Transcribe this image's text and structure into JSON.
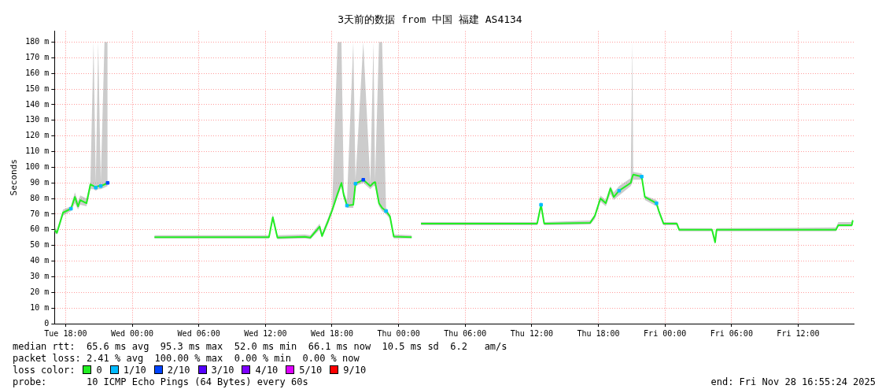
{
  "chart_data": {
    "type": "line",
    "title": "3天前的数据 from 中国 福建 AS4134",
    "ylabel": "Seconds",
    "xlim": [
      "2025-11-25T17:00",
      "2025-11-28T17:00"
    ],
    "xticks": [
      {
        "value": "2025-11-25T18:00",
        "label": "Tue 18:00"
      },
      {
        "value": "2025-11-26T00:00",
        "label": "Wed 00:00"
      },
      {
        "value": "2025-11-26T06:00",
        "label": "Wed 06:00"
      },
      {
        "value": "2025-11-26T12:00",
        "label": "Wed 12:00"
      },
      {
        "value": "2025-11-26T18:00",
        "label": "Wed 18:00"
      },
      {
        "value": "2025-11-27T00:00",
        "label": "Thu 00:00"
      },
      {
        "value": "2025-11-27T06:00",
        "label": "Thu 06:00"
      },
      {
        "value": "2025-11-27T12:00",
        "label": "Thu 12:00"
      },
      {
        "value": "2025-11-27T18:00",
        "label": "Thu 18:00"
      },
      {
        "value": "2025-11-28T00:00",
        "label": "Fri 00:00"
      },
      {
        "value": "2025-11-28T06:00",
        "label": "Fri 06:00"
      },
      {
        "value": "2025-11-28T12:00",
        "label": "Fri 12:00"
      }
    ],
    "ylim": [
      0,
      187
    ],
    "yticks": [
      0,
      {
        "value": 10,
        "label": "10 m"
      },
      {
        "value": 20,
        "label": "20 m"
      },
      {
        "value": 30,
        "label": "30 m"
      },
      {
        "value": 40,
        "label": "40 m"
      },
      {
        "value": 50,
        "label": "50 m"
      },
      {
        "value": 60,
        "label": "60 m"
      },
      {
        "value": 70,
        "label": "70 m"
      },
      {
        "value": 80,
        "label": "80 m"
      },
      {
        "value": 90,
        "label": "90 m"
      },
      {
        "value": 100,
        "label": "100 m"
      },
      {
        "value": 110,
        "label": "110 m"
      },
      {
        "value": 120,
        "label": "120 m"
      },
      {
        "value": 130,
        "label": "130 m"
      },
      {
        "value": 140,
        "label": "140 m"
      },
      {
        "value": 150,
        "label": "150 m"
      },
      {
        "value": 160,
        "label": "160 m"
      },
      {
        "value": 170,
        "label": "170 m"
      },
      {
        "value": 180,
        "label": "180 m"
      }
    ],
    "grid": true,
    "legend": "bottom",
    "marker": "none",
    "line_style": "solid",
    "annotations": [
      "median rtt:  65.6 ms avg  95.3 ms max  52.0 ms min  66.1 ms now  10.5 ms sd  6.2   am/s",
      "packet loss: 2.41 % avg  100.00 % max  0.00 % min  0.00 % now",
      "loss color:",
      "probe:       10 ICMP Echo Pings (64 Bytes) every 60s",
      "end: Fri Nov 28 16:55:24 2025"
    ],
    "series": [
      {
        "name": "0",
        "color": "#22ee22",
        "x": [
          "2025-11-25T17:00",
          "2025-11-25T17:13",
          "2025-11-25T17:46",
          "2025-11-25T18:29",
          "2025-11-25T18:50",
          "2025-11-25T19:07",
          "2025-11-25T19:19",
          "2025-11-25T19:53",
          "2025-11-25T20:14",
          "2025-11-25T20:31",
          "2025-11-25T20:43",
          "2025-11-25T20:56",
          "2025-11-25T21:10",
          "2025-11-25T21:30",
          "2025-11-25T21:47",
          "2025-11-25T22:30",
          "2025-11-26T02:00",
          "2025-11-26T12:19",
          "2025-11-26T12:40",
          "2025-11-26T13:05",
          "2025-11-26T15:33",
          "2025-11-26T16:03",
          "2025-11-26T16:53",
          "2025-11-26T17:06",
          "2025-11-26T17:40",
          "2025-11-26T18:01",
          "2025-11-26T18:30",
          "2025-11-26T18:51",
          "2025-11-26T19:04",
          "2025-11-26T19:21",
          "2025-11-26T19:55",
          "2025-11-26T20:07",
          "2025-11-26T20:49",
          "2025-11-26T21:27",
          "2025-11-26T21:44",
          "2025-11-26T21:53",
          "2025-11-26T22:14",
          "2025-11-26T22:31",
          "2025-11-26T22:52",
          "2025-11-26T23:13",
          "2025-11-26T23:34",
          "2025-11-27T01:11",
          "2025-11-27T01:35",
          "2025-11-27T02:01",
          "2025-11-27T12:29",
          "2025-11-27T12:50",
          "2025-11-27T13:07",
          "2025-11-27T17:16",
          "2025-11-27T17:41",
          "2025-11-27T18:11",
          "2025-11-27T18:40",
          "2025-11-27T19:05",
          "2025-11-27T19:23",
          "2025-11-27T19:52",
          "2025-11-27T20:55",
          "2025-11-27T21:04",
          "2025-11-27T21:08",
          "2025-11-27T21:54",
          "2025-11-27T22:11",
          "2025-11-27T23:14",
          "2025-11-27T23:27",
          "2025-11-27T23:52",
          "2025-11-28T01:04",
          "2025-11-28T01:17",
          "2025-11-28T04:14",
          "2025-11-28T04:31",
          "2025-11-28T04:39",
          "2025-11-28T15:24",
          "2025-11-28T15:37",
          "2025-11-28T16:50",
          "2025-11-28T16:55"
        ],
        "values": [
          60,
          58,
          71,
          73.5,
          81,
          75,
          79,
          77,
          89,
          88,
          87,
          88,
          88,
          89,
          90,
          null,
          55.2,
          55.2,
          68,
          55,
          55.5,
          55,
          62,
          56,
          66,
          72.5,
          83,
          90,
          82,
          75.5,
          76,
          89.5,
          92,
          88,
          90,
          90.5,
          77,
          74,
          72,
          68.7,
          55.6,
          55.3,
          null,
          64,
          64,
          76,
          64,
          64.5,
          69,
          80,
          77,
          86.5,
          81,
          85,
          90,
          94,
          95.3,
          94,
          81,
          77,
          72,
          64,
          64,
          60,
          60,
          52,
          60,
          60,
          63,
          63,
          66.1
        ],
        "lower": [
          58,
          57,
          69,
          72,
          77,
          73,
          76,
          75,
          86,
          86,
          85,
          86,
          86,
          87,
          88,
          null,
          54.5,
          54.5,
          66,
          54,
          54.5,
          54,
          60,
          55,
          64,
          71,
          81,
          88,
          80,
          74,
          74,
          88,
          90,
          86,
          88,
          88,
          75,
          72,
          70,
          67,
          54.5,
          54.5,
          null,
          63,
          63,
          73,
          63,
          63.5,
          67,
          78,
          75,
          83,
          79,
          82,
          88,
          90,
          92,
          92,
          79,
          75,
          70,
          63,
          63,
          59,
          59,
          51,
          59,
          59,
          62,
          62,
          65
        ],
        "upper": [
          62,
          60,
          73,
          75,
          84,
          78,
          82,
          80,
          91,
          180,
          90,
          180,
          91,
          180,
          180,
          null,
          56.5,
          56.5,
          70,
          56.5,
          57,
          56.5,
          64,
          58,
          68,
          75,
          180,
          180,
          84,
          79,
          180,
          92,
          180,
          90,
          180,
          92,
          180,
          180,
          74,
          70,
          57,
          56.5,
          null,
          65,
          65,
          78,
          65,
          66,
          70,
          82,
          79,
          88,
          84,
          88,
          93,
          180,
          97,
          96,
          82,
          79,
          73,
          65,
          65,
          61,
          61,
          55,
          61,
          61.5,
          65,
          65,
          67.5
        ]
      },
      {
        "name": "1/10",
        "color": "#00bbff",
        "type": "scatter",
        "marker": "square",
        "x": [
          "2025-11-25T18:29",
          "2025-11-25T20:43",
          "2025-11-25T21:10",
          "2025-11-26T19:21",
          "2025-11-26T20:07",
          "2025-11-26T22:52",
          "2025-11-27T12:50",
          "2025-11-27T19:52",
          "2025-11-27T21:54",
          "2025-11-27T23:14"
        ],
        "values": [
          73.5,
          87,
          88,
          75.5,
          89.5,
          72,
          76,
          85,
          94,
          77
        ]
      },
      {
        "name": "2/10",
        "color": "#0044ff",
        "type": "scatter",
        "marker": "square",
        "x": [
          "2025-11-25T21:47",
          "2025-11-26T20:49"
        ],
        "values": [
          90,
          92
        ]
      },
      {
        "name": "3/10",
        "color": "#5500ff",
        "type": "scatter",
        "marker": "square"
      },
      {
        "name": "4/10",
        "color": "#7e00ff",
        "type": "scatter",
        "marker": "square"
      },
      {
        "name": "5/10",
        "color": "#dd00ff",
        "type": "scatter",
        "marker": "square"
      },
      {
        "name": "9/10",
        "color": "#ff0000",
        "type": "scatter",
        "marker": "square"
      }
    ]
  }
}
